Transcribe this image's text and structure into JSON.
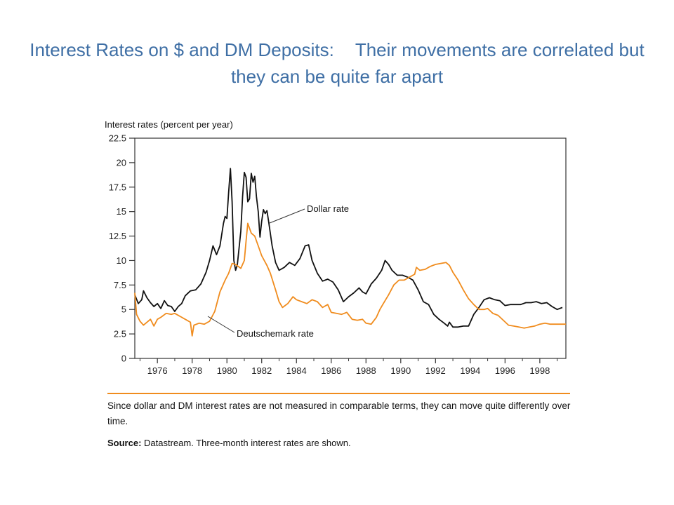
{
  "title": {
    "part1": "Interest Rates on $ and DM Deposits:",
    "part2": "Their movements are correlated but they can be quite far apart"
  },
  "chart_data": {
    "type": "line",
    "ylabel": "Interest rates (percent per year)",
    "xlabel": "",
    "xlim": [
      1974.7,
      1999.5
    ],
    "ylim": [
      0,
      22.5
    ],
    "y_ticks": [
      "0",
      "2.5",
      "5",
      "7.5",
      "10",
      "12.5",
      "15",
      "17.5",
      "20",
      "22.5"
    ],
    "x_ticks": [
      "1976",
      "1978",
      "1980",
      "1982",
      "1984",
      "1986",
      "1988",
      "1990",
      "1992",
      "1994",
      "1996",
      "1998"
    ],
    "grid": false,
    "series": [
      {
        "name": "Dollar rate",
        "color": "#111111",
        "points": [
          [
            1974.7,
            6.5
          ],
          [
            1974.9,
            5.6
          ],
          [
            1975.1,
            6.0
          ],
          [
            1975.2,
            6.9
          ],
          [
            1975.4,
            6.2
          ],
          [
            1975.6,
            5.7
          ],
          [
            1975.8,
            5.3
          ],
          [
            1976.0,
            5.6
          ],
          [
            1976.2,
            5.1
          ],
          [
            1976.4,
            5.9
          ],
          [
            1976.6,
            5.4
          ],
          [
            1976.8,
            5.3
          ],
          [
            1977.0,
            4.8
          ],
          [
            1977.2,
            5.3
          ],
          [
            1977.4,
            5.6
          ],
          [
            1977.6,
            6.4
          ],
          [
            1977.9,
            6.9
          ],
          [
            1978.2,
            7.0
          ],
          [
            1978.5,
            7.6
          ],
          [
            1978.8,
            8.8
          ],
          [
            1979.0,
            10.0
          ],
          [
            1979.2,
            11.5
          ],
          [
            1979.4,
            10.6
          ],
          [
            1979.6,
            11.5
          ],
          [
            1979.8,
            13.8
          ],
          [
            1979.9,
            14.5
          ],
          [
            1980.0,
            14.3
          ],
          [
            1980.1,
            17.0
          ],
          [
            1980.2,
            19.4
          ],
          [
            1980.3,
            16.0
          ],
          [
            1980.4,
            10.0
          ],
          [
            1980.5,
            9.0
          ],
          [
            1980.6,
            9.6
          ],
          [
            1980.8,
            13.0
          ],
          [
            1980.9,
            16.5
          ],
          [
            1981.0,
            19.0
          ],
          [
            1981.1,
            18.5
          ],
          [
            1981.2,
            16.0
          ],
          [
            1981.3,
            16.3
          ],
          [
            1981.4,
            18.9
          ],
          [
            1981.5,
            18.0
          ],
          [
            1981.6,
            18.6
          ],
          [
            1981.7,
            16.5
          ],
          [
            1981.8,
            15.0
          ],
          [
            1981.9,
            12.4
          ],
          [
            1982.0,
            14.0
          ],
          [
            1982.1,
            15.2
          ],
          [
            1982.2,
            14.8
          ],
          [
            1982.3,
            15.1
          ],
          [
            1982.4,
            14.0
          ],
          [
            1982.6,
            11.5
          ],
          [
            1982.8,
            9.8
          ],
          [
            1983.0,
            9.0
          ],
          [
            1983.3,
            9.3
          ],
          [
            1983.6,
            9.8
          ],
          [
            1983.9,
            9.5
          ],
          [
            1984.2,
            10.2
          ],
          [
            1984.5,
            11.5
          ],
          [
            1984.7,
            11.6
          ],
          [
            1984.9,
            10.0
          ],
          [
            1985.2,
            8.7
          ],
          [
            1985.5,
            7.9
          ],
          [
            1985.8,
            8.1
          ],
          [
            1986.1,
            7.8
          ],
          [
            1986.4,
            7.0
          ],
          [
            1986.7,
            5.8
          ],
          [
            1987.0,
            6.3
          ],
          [
            1987.3,
            6.7
          ],
          [
            1987.6,
            7.2
          ],
          [
            1987.8,
            6.8
          ],
          [
            1988.0,
            6.6
          ],
          [
            1988.3,
            7.6
          ],
          [
            1988.6,
            8.2
          ],
          [
            1988.9,
            9.0
          ],
          [
            1989.1,
            10.0
          ],
          [
            1989.3,
            9.6
          ],
          [
            1989.5,
            9.0
          ],
          [
            1989.8,
            8.5
          ],
          [
            1990.1,
            8.5
          ],
          [
            1990.4,
            8.3
          ],
          [
            1990.7,
            8.0
          ],
          [
            1991.0,
            7.0
          ],
          [
            1991.3,
            5.8
          ],
          [
            1991.6,
            5.5
          ],
          [
            1991.9,
            4.5
          ],
          [
            1992.2,
            4.0
          ],
          [
            1992.5,
            3.6
          ],
          [
            1992.7,
            3.3
          ],
          [
            1992.8,
            3.7
          ],
          [
            1993.0,
            3.2
          ],
          [
            1993.3,
            3.2
          ],
          [
            1993.6,
            3.3
          ],
          [
            1993.9,
            3.3
          ],
          [
            1994.2,
            4.5
          ],
          [
            1994.5,
            5.2
          ],
          [
            1994.8,
            6.0
          ],
          [
            1995.1,
            6.2
          ],
          [
            1995.4,
            6.0
          ],
          [
            1995.7,
            5.9
          ],
          [
            1996.0,
            5.4
          ],
          [
            1996.3,
            5.5
          ],
          [
            1996.6,
            5.5
          ],
          [
            1996.9,
            5.5
          ],
          [
            1997.2,
            5.7
          ],
          [
            1997.5,
            5.7
          ],
          [
            1997.8,
            5.8
          ],
          [
            1998.1,
            5.6
          ],
          [
            1998.4,
            5.7
          ],
          [
            1998.7,
            5.3
          ],
          [
            1999.0,
            5.0
          ],
          [
            1999.3,
            5.2
          ]
        ]
      },
      {
        "name": "Deutschemark rate",
        "color": "#f08c1e",
        "points": [
          [
            1974.7,
            6.7
          ],
          [
            1974.8,
            4.5
          ],
          [
            1975.0,
            3.8
          ],
          [
            1975.2,
            3.4
          ],
          [
            1975.4,
            3.7
          ],
          [
            1975.6,
            4.0
          ],
          [
            1975.8,
            3.3
          ],
          [
            1976.0,
            4.0
          ],
          [
            1976.2,
            4.2
          ],
          [
            1976.5,
            4.6
          ],
          [
            1976.8,
            4.5
          ],
          [
            1977.0,
            4.6
          ],
          [
            1977.3,
            4.3
          ],
          [
            1977.6,
            4.0
          ],
          [
            1977.9,
            3.7
          ],
          [
            1978.0,
            2.3
          ],
          [
            1978.1,
            3.4
          ],
          [
            1978.4,
            3.6
          ],
          [
            1978.7,
            3.5
          ],
          [
            1979.0,
            3.8
          ],
          [
            1979.3,
            4.8
          ],
          [
            1979.6,
            6.8
          ],
          [
            1979.9,
            8.0
          ],
          [
            1980.1,
            8.7
          ],
          [
            1980.3,
            9.7
          ],
          [
            1980.5,
            9.6
          ],
          [
            1980.8,
            9.2
          ],
          [
            1981.0,
            10.0
          ],
          [
            1981.1,
            12.0
          ],
          [
            1981.2,
            13.8
          ],
          [
            1981.4,
            12.8
          ],
          [
            1981.6,
            12.5
          ],
          [
            1981.8,
            11.5
          ],
          [
            1982.0,
            10.5
          ],
          [
            1982.3,
            9.5
          ],
          [
            1982.5,
            8.7
          ],
          [
            1982.8,
            7.0
          ],
          [
            1983.0,
            5.8
          ],
          [
            1983.2,
            5.2
          ],
          [
            1983.5,
            5.6
          ],
          [
            1983.8,
            6.3
          ],
          [
            1984.0,
            6.0
          ],
          [
            1984.3,
            5.8
          ],
          [
            1984.6,
            5.6
          ],
          [
            1984.9,
            6.0
          ],
          [
            1985.2,
            5.8
          ],
          [
            1985.5,
            5.2
          ],
          [
            1985.8,
            5.5
          ],
          [
            1986.0,
            4.7
          ],
          [
            1986.3,
            4.6
          ],
          [
            1986.6,
            4.5
          ],
          [
            1986.9,
            4.7
          ],
          [
            1987.2,
            4.0
          ],
          [
            1987.5,
            3.9
          ],
          [
            1987.8,
            4.0
          ],
          [
            1988.0,
            3.6
          ],
          [
            1988.3,
            3.5
          ],
          [
            1988.6,
            4.2
          ],
          [
            1988.8,
            5.0
          ],
          [
            1989.0,
            5.6
          ],
          [
            1989.3,
            6.5
          ],
          [
            1989.6,
            7.5
          ],
          [
            1989.9,
            8.0
          ],
          [
            1990.2,
            8.0
          ],
          [
            1990.5,
            8.3
          ],
          [
            1990.8,
            8.6
          ],
          [
            1990.9,
            9.3
          ],
          [
            1991.1,
            9.0
          ],
          [
            1991.4,
            9.1
          ],
          [
            1991.7,
            9.4
          ],
          [
            1992.0,
            9.6
          ],
          [
            1992.3,
            9.7
          ],
          [
            1992.6,
            9.8
          ],
          [
            1992.8,
            9.5
          ],
          [
            1993.0,
            8.8
          ],
          [
            1993.3,
            8.0
          ],
          [
            1993.6,
            7.0
          ],
          [
            1993.9,
            6.1
          ],
          [
            1994.2,
            5.5
          ],
          [
            1994.5,
            5.0
          ],
          [
            1994.8,
            5.0
          ],
          [
            1995.0,
            5.1
          ],
          [
            1995.3,
            4.6
          ],
          [
            1995.6,
            4.4
          ],
          [
            1995.9,
            3.9
          ],
          [
            1996.2,
            3.4
          ],
          [
            1996.5,
            3.3
          ],
          [
            1996.8,
            3.2
          ],
          [
            1997.1,
            3.1
          ],
          [
            1997.4,
            3.2
          ],
          [
            1997.7,
            3.3
          ],
          [
            1998.0,
            3.5
          ],
          [
            1998.3,
            3.6
          ],
          [
            1998.6,
            3.5
          ],
          [
            1998.9,
            3.5
          ],
          [
            1999.2,
            3.5
          ],
          [
            1999.5,
            3.5
          ]
        ]
      }
    ],
    "annotations": [
      {
        "text": "Dollar rate",
        "series": 0
      },
      {
        "text": "Deutschemark rate",
        "series": 1
      }
    ],
    "rule_color": "#f08c1e"
  },
  "caption": "Since dollar and DM interest rates are not measured in comparable terms, they can move quite differently over time.",
  "source": {
    "label": "Source:",
    "text": "Datastream. Three-month interest rates are shown."
  }
}
